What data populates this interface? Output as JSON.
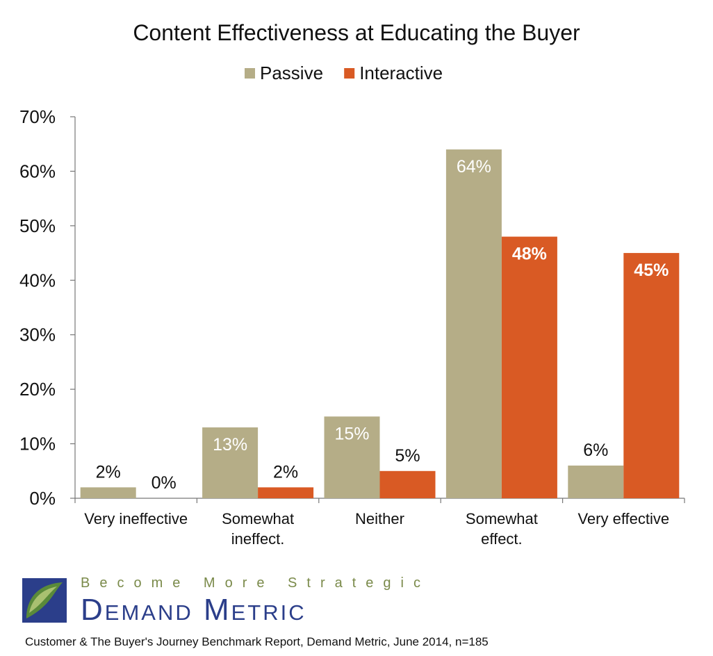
{
  "chart_data": {
    "type": "bar",
    "title": "Content Effectiveness at Educating the Buyer",
    "categories": [
      "Very ineffective",
      "Somewhat ineffect.",
      "Neither",
      "Somewhat effect.",
      "Very effective"
    ],
    "category_lines": [
      [
        "Very ineffective"
      ],
      [
        "Somewhat",
        "ineffect."
      ],
      [
        "Neither"
      ],
      [
        "Somewhat",
        "effect."
      ],
      [
        "Very effective"
      ]
    ],
    "series": [
      {
        "name": "Passive",
        "values": [
          2,
          13,
          15,
          64,
          6
        ],
        "labels": [
          "2%",
          "13%",
          "15%",
          "64%",
          "6%"
        ],
        "color": "#b5ad87"
      },
      {
        "name": "Interactive",
        "values": [
          0,
          2,
          5,
          48,
          45
        ],
        "labels": [
          "0%",
          "2%",
          "5%",
          "48%",
          "45%"
        ],
        "color": "#d95a24"
      }
    ],
    "ylim": [
      0,
      70
    ],
    "yticks": [
      0,
      10,
      20,
      30,
      40,
      50,
      60,
      70
    ],
    "ytick_labels": [
      "0%",
      "10%",
      "20%",
      "30%",
      "40%",
      "50%",
      "60%",
      "70%"
    ],
    "legend": "top",
    "grid": false
  },
  "brand": {
    "tagline": "Become More Strategic",
    "name": "Demand Metric",
    "logo_colors": [
      "#2b3e8a",
      "#5a8a3a",
      "#a8c070"
    ]
  },
  "source": "Customer & The Buyer's Journey Benchmark Report, Demand Metric, June 2014, n=185"
}
